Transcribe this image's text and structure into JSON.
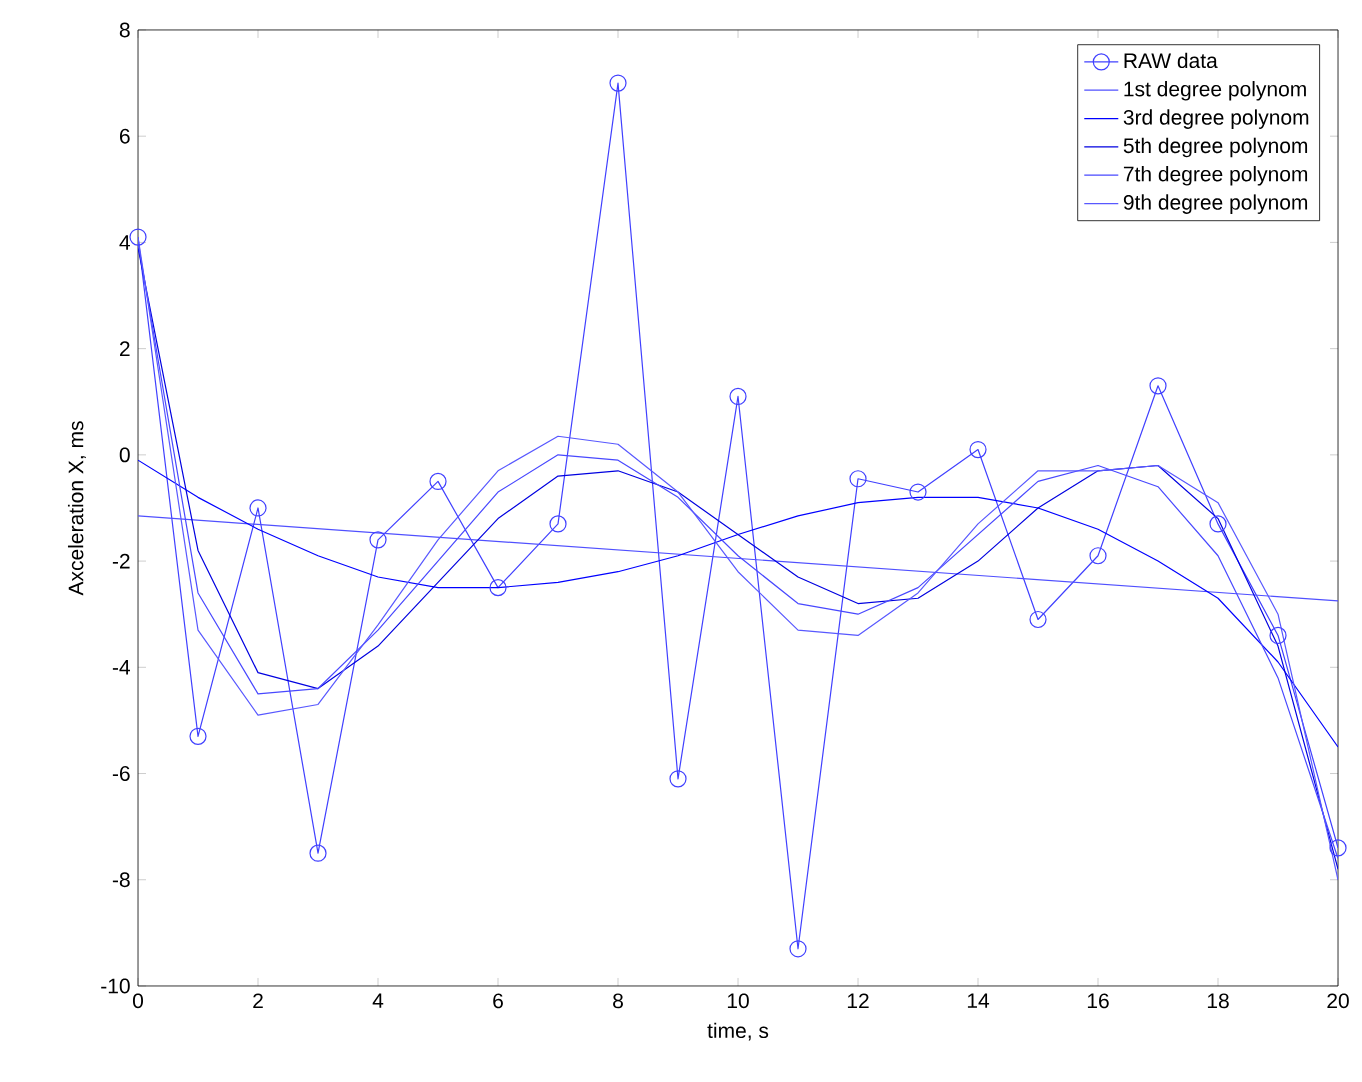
{
  "chart_data": {
    "type": "line",
    "xlabel": "time, s",
    "ylabel": "Axceleration X, ms",
    "xlim": [
      0,
      20
    ],
    "ylim": [
      -10,
      8
    ],
    "xticks": [
      0,
      2,
      4,
      6,
      8,
      10,
      12,
      14,
      16,
      18,
      20
    ],
    "yticks": [
      -10,
      -8,
      -6,
      -4,
      -2,
      0,
      2,
      4,
      6,
      8
    ],
    "legend": "top right",
    "grid": false,
    "line_style": "solid",
    "x": [
      0,
      1,
      2,
      3,
      4,
      5,
      6,
      7,
      8,
      9,
      10,
      11,
      12,
      13,
      14,
      15,
      16,
      17,
      18,
      19,
      20
    ],
    "series": [
      {
        "name": "RAW data",
        "color": "#4040ff",
        "marker": "circle",
        "values": [
          4.1,
          -5.3,
          -1.0,
          -7.5,
          -1.6,
          -0.5,
          -2.5,
          -1.3,
          7.0,
          -6.1,
          1.1,
          -9.3,
          -0.45,
          -0.7,
          0.1,
          -3.1,
          -1.9,
          1.3,
          -1.3,
          -3.4,
          -7.4
        ]
      },
      {
        "name": "1st degree polynom",
        "color": "#5050ff",
        "marker": "none",
        "x": [
          0,
          20
        ],
        "values": [
          -1.15,
          -2.75
        ]
      },
      {
        "name": "3rd degree polynom",
        "color": "#0000ff",
        "marker": "none",
        "values": [
          -0.1,
          -0.8,
          -1.4,
          -1.9,
          -2.3,
          -2.5,
          -2.5,
          -2.4,
          -2.2,
          -1.9,
          -1.5,
          -1.15,
          -0.9,
          -0.8,
          -0.8,
          -1.0,
          -1.4,
          -2.0,
          -2.7,
          -3.9,
          -5.5
        ]
      },
      {
        "name": "5th degree polynom",
        "color": "#0000e0",
        "marker": "none",
        "values": [
          3.9,
          -1.8,
          -4.1,
          -4.4,
          -3.6,
          -2.4,
          -1.2,
          -0.4,
          -0.3,
          -0.7,
          -1.5,
          -2.3,
          -2.8,
          -2.7,
          -2.0,
          -1.0,
          -0.3,
          -0.2,
          -1.2,
          -3.6,
          -7.8
        ]
      },
      {
        "name": "7th degree polynom",
        "color": "#4848ff",
        "marker": "none",
        "values": [
          4.0,
          -2.6,
          -4.5,
          -4.4,
          -3.3,
          -2.0,
          -0.7,
          0.0,
          -0.1,
          -0.8,
          -1.9,
          -2.8,
          -3.0,
          -2.5,
          -1.5,
          -0.5,
          -0.2,
          -0.6,
          -1.9,
          -4.2,
          -7.6
        ]
      },
      {
        "name": "9th degree polynom",
        "color": "#5858ff",
        "marker": "none",
        "values": [
          4.1,
          -3.3,
          -4.9,
          -4.7,
          -3.2,
          -1.6,
          -0.3,
          0.35,
          0.2,
          -0.7,
          -2.2,
          -3.3,
          -3.4,
          -2.6,
          -1.3,
          -0.3,
          -0.3,
          -0.2,
          -0.9,
          -3.0,
          -8.0
        ]
      }
    ]
  }
}
